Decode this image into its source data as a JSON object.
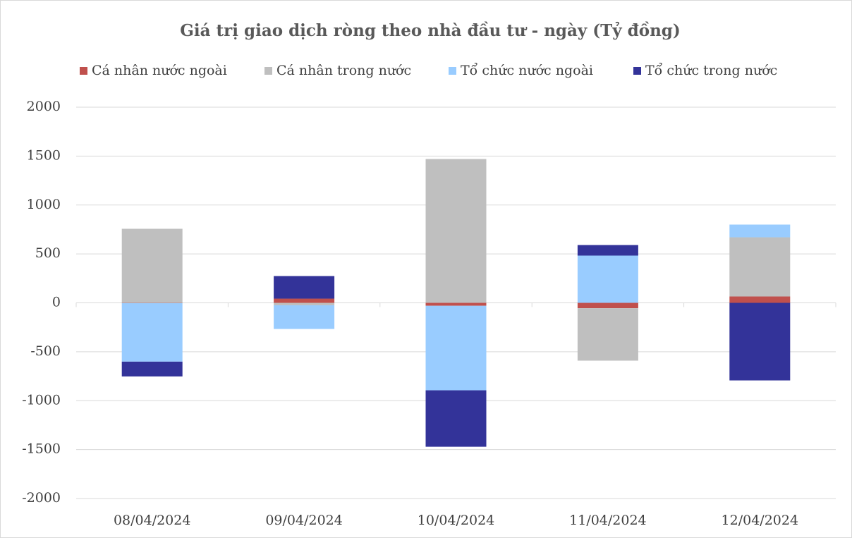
{
  "chart_data": {
    "type": "stacked_bar",
    "title": "Giá trị giao dịch ròng theo nhà đầu tư - ngày (Tỷ đồng)",
    "categories": [
      "08/04/2024",
      "09/04/2024",
      "10/04/2024",
      "11/04/2024",
      "12/04/2024"
    ],
    "series": [
      {
        "name": "Cá nhân nước ngoài",
        "color": "#c0504d",
        "values": [
          -3,
          43,
          -30,
          -55,
          65
        ]
      },
      {
        "name": "Cá nhân trong nước",
        "color": "#bfbfbf",
        "values": [
          757,
          -25,
          1470,
          -536,
          605
        ]
      },
      {
        "name": "Tổ chức nước ngoài",
        "color": "#99ccff",
        "values": [
          -598,
          -242,
          -864,
          483,
          130
        ]
      },
      {
        "name": "Tổ chức trong nước",
        "color": "#333399",
        "values": [
          -151,
          231,
          -577,
          108,
          -793
        ]
      }
    ],
    "ylim": [
      -2000,
      2000
    ],
    "yticks": [
      -2000,
      -1500,
      -1000,
      -500,
      0,
      500,
      1000,
      1500,
      2000
    ],
    "grid": true,
    "legend": "top"
  }
}
